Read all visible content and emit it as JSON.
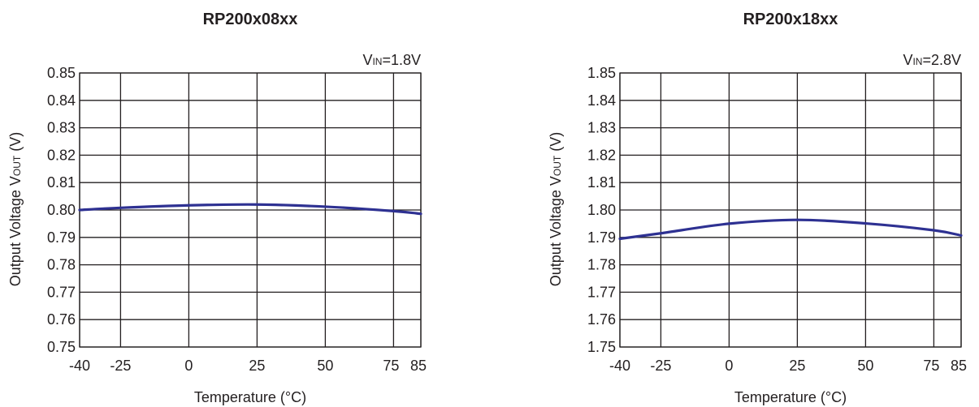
{
  "chart_data": [
    {
      "type": "line",
      "title": "RP200x08xx",
      "condition": {
        "prefix": "V",
        "sub": "IN",
        "value": "=1.8V"
      },
      "xlabel": "Temperature (°C)",
      "ylabel": {
        "prefix": "Output Voltage V",
        "sub": "OUT",
        "suffix": " (V)"
      },
      "xlim": [
        -40,
        85
      ],
      "ylim": [
        0.75,
        0.85
      ],
      "xticks": [
        -40,
        -25,
        0,
        25,
        50,
        75,
        85
      ],
      "yticks": [
        0.75,
        0.76,
        0.77,
        0.78,
        0.79,
        0.8,
        0.81,
        0.82,
        0.83,
        0.84,
        0.85
      ],
      "grid": true,
      "series": [
        {
          "color": "#2e3192",
          "x": [
            -40,
            -25,
            0,
            25,
            50,
            75,
            85
          ],
          "y": [
            0.8,
            0.8008,
            0.8017,
            0.802,
            0.8012,
            0.7996,
            0.7986
          ]
        }
      ]
    },
    {
      "type": "line",
      "title": "RP200x18xx",
      "condition": {
        "prefix": "V",
        "sub": "IN",
        "value": "=2.8V"
      },
      "xlabel": "Temperature (°C)",
      "ylabel": {
        "prefix": "Output Voltage V",
        "sub": "OUT",
        "suffix": " (V)"
      },
      "xlim": [
        -40,
        85
      ],
      "ylim": [
        1.75,
        1.85
      ],
      "xticks": [
        -40,
        -25,
        0,
        25,
        50,
        75,
        85
      ],
      "yticks": [
        1.75,
        1.76,
        1.77,
        1.78,
        1.79,
        1.8,
        1.81,
        1.82,
        1.83,
        1.84,
        1.85
      ],
      "grid": true,
      "series": [
        {
          "color": "#2e3192",
          "x": [
            -40,
            -25,
            0,
            25,
            50,
            75,
            85
          ],
          "y": [
            1.7895,
            1.7915,
            1.795,
            1.7964,
            1.7951,
            1.7926,
            1.7907
          ]
        }
      ]
    }
  ]
}
